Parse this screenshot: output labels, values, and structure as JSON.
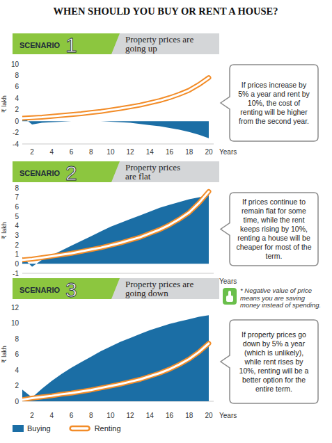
{
  "title": "WHEN SHOULD YOU BUY OR RENT A HOUSE?",
  "note": "* Negative value of price means you are saving money instead of spending.",
  "chart_data": [
    {
      "type": "area",
      "scenario": "SCENARIO",
      "number": "1",
      "title": "Property prices are\ngoing up",
      "annotation": "If prices increase by 5% a year and rent by 10%, the cost of renting will be higher from the second year.",
      "y_label": "₹ lakh",
      "x_label": "Years",
      "x": [
        1,
        2,
        3,
        4,
        5,
        6,
        7,
        8,
        9,
        10,
        11,
        12,
        13,
        14,
        15,
        16,
        17,
        18,
        19,
        20
      ],
      "xlim": [
        1,
        20.5
      ],
      "xticks": [
        2,
        4,
        6,
        8,
        10,
        12,
        14,
        16,
        18,
        20
      ],
      "ylim": [
        -4,
        10
      ],
      "yticks": [
        -4,
        -2,
        0,
        2,
        4,
        6,
        8,
        10
      ],
      "grid": false,
      "series": [
        {
          "type": "line",
          "color": "#f28c28",
          "values": [
            0.5,
            0.6,
            0.7,
            0.85,
            1.0,
            1.15,
            1.3,
            1.5,
            1.7,
            1.95,
            2.2,
            2.5,
            2.8,
            3.2,
            3.6,
            4.1,
            4.7,
            5.4,
            6.4,
            7.6
          ]
        },
        {
          "type": "area",
          "color": "#1b6ea5",
          "values": [
            0.8,
            -0.6,
            -0.3,
            -0.2,
            -0.1,
            0,
            0,
            0,
            0,
            -0.1,
            -0.2,
            -0.3,
            -0.5,
            -0.7,
            -0.9,
            -1.2,
            -1.5,
            -1.9,
            -2.4,
            -3.0
          ]
        }
      ]
    },
    {
      "type": "area",
      "scenario": "SCENARIO",
      "number": "2",
      "title": "Property prices\nare flat",
      "annotation": "If prices continue to remain flat for some time, while the rent keeps rising by 10%, renting a house will be cheaper for most of the term.",
      "y_label": "₹ lakh",
      "x_label": "Years",
      "x": [
        1,
        2,
        3,
        4,
        5,
        6,
        7,
        8,
        9,
        10,
        11,
        12,
        13,
        14,
        15,
        16,
        17,
        18,
        19,
        20
      ],
      "xlim": [
        1,
        20.5
      ],
      "xticks": [
        2,
        4,
        6,
        8,
        10,
        12,
        14,
        16,
        18,
        20
      ],
      "ylim": [
        -1,
        8
      ],
      "yticks": [
        -1,
        0,
        1,
        2,
        3,
        4,
        5,
        6,
        7,
        8
      ],
      "grid": false,
      "series": [
        {
          "type": "line",
          "color": "#f28c28",
          "values": [
            0.4,
            0.5,
            0.65,
            0.8,
            0.95,
            1.1,
            1.3,
            1.5,
            1.7,
            1.95,
            2.2,
            2.5,
            2.8,
            3.2,
            3.6,
            4.1,
            4.7,
            5.4,
            6.4,
            7.6
          ]
        },
        {
          "type": "area",
          "color": "#1b6ea5",
          "values": [
            0.7,
            -0.3,
            0.4,
            0.9,
            1.4,
            1.9,
            2.4,
            2.9,
            3.4,
            3.9,
            4.3,
            4.7,
            5.1,
            5.5,
            5.9,
            6.2,
            6.5,
            6.8,
            7.0,
            7.2
          ]
        }
      ]
    },
    {
      "type": "area",
      "scenario": "SCENARIO",
      "number": "3",
      "title": "Property prices are\ngoing down",
      "annotation": "If property prices go down by 5% a year (which is unlikely), while rent rises by 10%, renting will be a better option for the entire term.",
      "y_label": "₹ lakh",
      "x_label": "Years",
      "x": [
        1,
        2,
        3,
        4,
        5,
        6,
        7,
        8,
        9,
        10,
        11,
        12,
        13,
        14,
        15,
        16,
        17,
        18,
        19,
        20
      ],
      "xlim": [
        1,
        20.5
      ],
      "xticks": [
        2,
        4,
        6,
        8,
        10,
        12,
        14,
        16,
        18,
        20
      ],
      "ylim": [
        0,
        12
      ],
      "yticks": [
        0,
        2,
        4,
        6,
        8,
        10,
        12
      ],
      "grid": false,
      "series": [
        {
          "name": "Renting",
          "type": "line",
          "color": "#f28c28",
          "values": [
            0.2,
            0.4,
            0.55,
            0.7,
            0.9,
            1.05,
            1.25,
            1.45,
            1.7,
            1.95,
            2.2,
            2.5,
            2.8,
            3.2,
            3.6,
            4.1,
            4.7,
            5.4,
            6.3,
            7.4
          ]
        },
        {
          "name": "Buying",
          "type": "area",
          "color": "#1b6ea5",
          "values": [
            1.5,
            0.5,
            1.6,
            2.6,
            3.5,
            4.3,
            5.0,
            5.7,
            6.4,
            7.0,
            7.6,
            8.1,
            8.6,
            9.1,
            9.5,
            9.9,
            10.2,
            10.5,
            10.8,
            11.0
          ]
        }
      ]
    }
  ]
}
